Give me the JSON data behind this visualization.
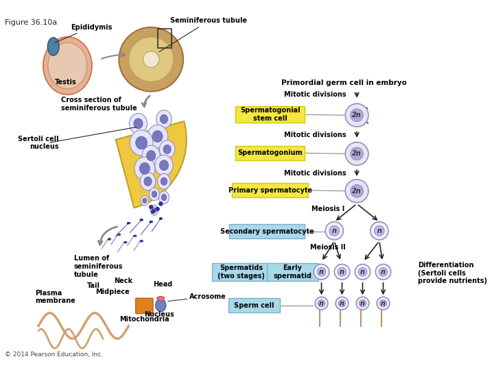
{
  "figure_label": "Figure 36.10a",
  "background_color": "#ffffff",
  "fig_width": 7.2,
  "fig_height": 5.4,
  "dpi": 100,
  "yellow_box_color": "#f5e642",
  "yellow_box_edge": "#cccc00",
  "blue_box_color": "#a8d8ea",
  "blue_box_edge": "#7ab0c8",
  "arrow_color": "#222222",
  "label_font_size": 7,
  "title_font_size": 7.5,
  "copyright_text": "© 2014 Pearson Education, Inc.",
  "labels": {
    "figure": "Figure 36.10a",
    "epididymis": "Epididymis",
    "seminiferous_tubule": "Seminiferous tubule",
    "testis": "Testis",
    "cross_section": "Cross section of\nseminiferous tubule",
    "sertoli_cell": "Sertoli cell\nnucleus",
    "lumen": "Lumen of\nseminiferous\ntubule",
    "tail": "Tail",
    "neck": "Neck",
    "midpiece": "Midpiece",
    "head": "Head",
    "plasma_membrane": "Plasma\nmembrane",
    "acrosome": "Acrosome",
    "nucleus_label": "Nucleus",
    "mitochondria": "Mitochondria",
    "primordial": "Primordial germ cell in embryo",
    "mitotic1": "Mitotic divisions",
    "spermatogonial": "Spermatogonial\nstem cell",
    "mitotic2": "Mitotic divisions",
    "spermatogonium": "Spermatogonium",
    "mitotic3": "Mitotic divisions",
    "primary_spermatocyte": "Primary spermatocyte",
    "meiosis1": "Meiosis I",
    "secondary_spermatocyte": "Secondary spermatocyte",
    "meiosis2": "Meiosis II",
    "spermatids": "Spermatids\n(two stages)",
    "early_spermatid": "Early\nspermatid",
    "differentiation": "Differentiation\n(Sertoli cells\nprovide nutrients)",
    "sperm_cell": "Sperm cell"
  }
}
